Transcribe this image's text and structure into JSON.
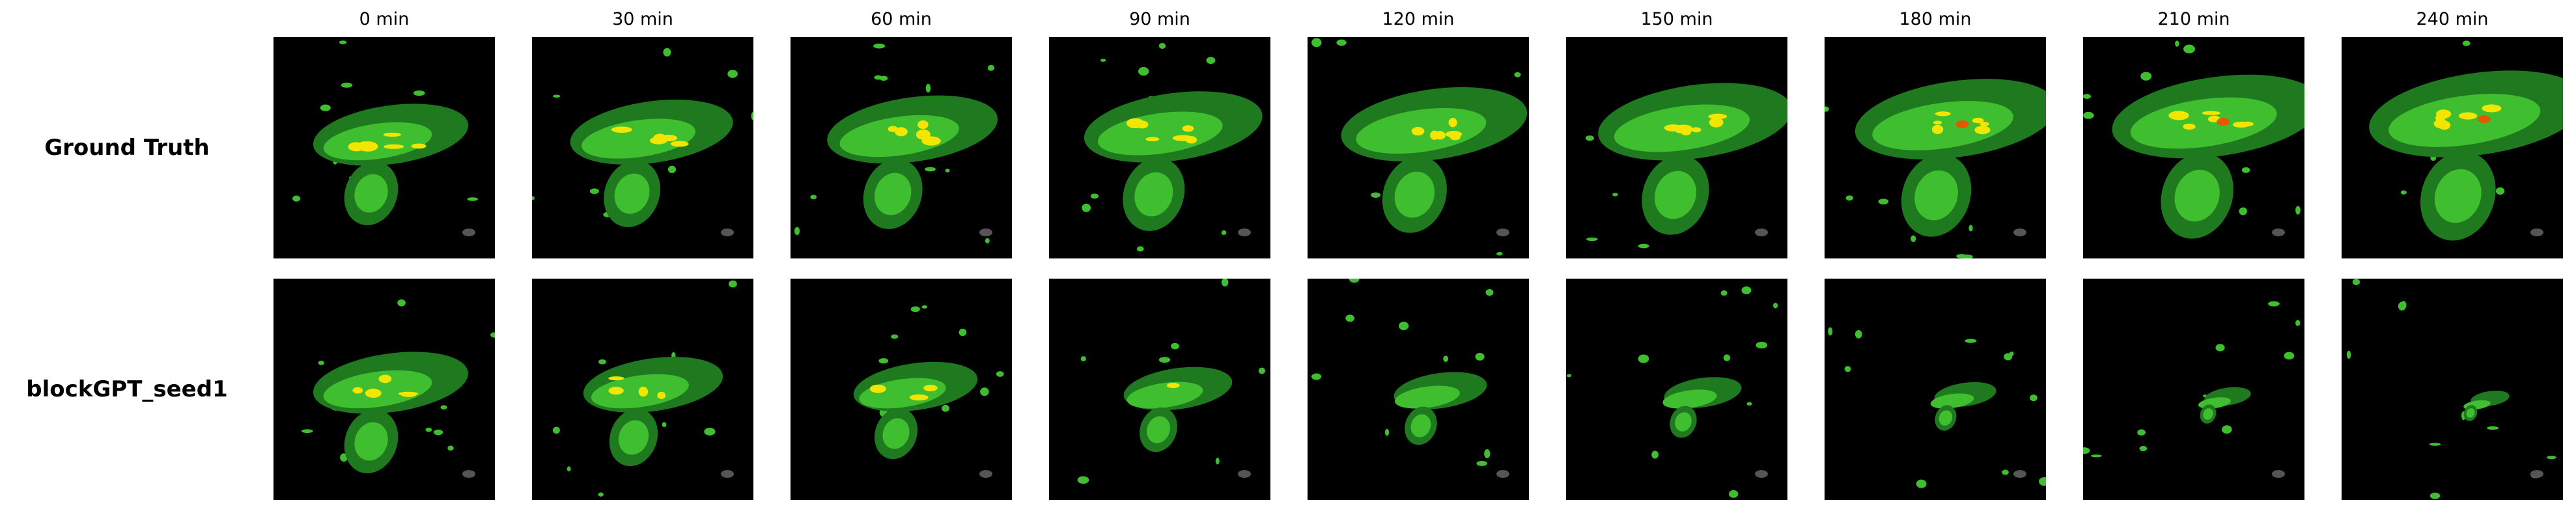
{
  "columns": [
    "0 min",
    "30 min",
    "60 min",
    "90 min",
    "120 min",
    "150 min",
    "180 min",
    "210 min",
    "240 min"
  ],
  "rows": [
    {
      "label": "Ground Truth"
    },
    {
      "label": "blockGPT_seed1"
    }
  ],
  "colors": {
    "background": "#000000",
    "low": "#1f7a1f",
    "medium": "#3fbf2f",
    "high": "#f2e600",
    "extreme": "#e05a00",
    "clutter": "#555555"
  }
}
